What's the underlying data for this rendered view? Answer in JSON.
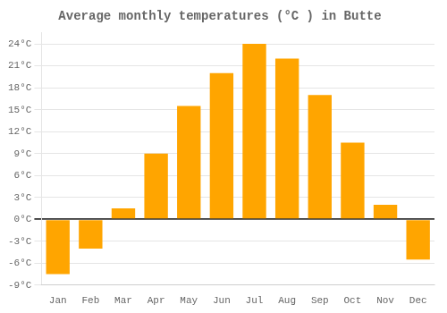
{
  "chart_data": {
    "type": "bar",
    "title": "Average monthly temperatures (°C ) in Butte",
    "categories": [
      "Jan",
      "Feb",
      "Mar",
      "Apr",
      "May",
      "Jun",
      "Jul",
      "Aug",
      "Sep",
      "Oct",
      "Nov",
      "Dec"
    ],
    "values": [
      -7.5,
      -4.0,
      1.5,
      9.0,
      15.5,
      20.0,
      24.0,
      22.0,
      17.0,
      10.5,
      2.0,
      -5.5
    ],
    "color": "#FFA500",
    "ylim": [
      -9,
      25.5
    ],
    "yticks": [
      {
        "value": -9,
        "label": "-9°C"
      },
      {
        "value": -6,
        "label": "-6°C"
      },
      {
        "value": -3,
        "label": "-3°C"
      },
      {
        "value": 0,
        "label": "0°C"
      },
      {
        "value": 3,
        "label": "3°C"
      },
      {
        "value": 6,
        "label": "6°C"
      },
      {
        "value": 9,
        "label": "9°C"
      },
      {
        "value": 12,
        "label": "12°C"
      },
      {
        "value": 15,
        "label": "15°C"
      },
      {
        "value": 18,
        "label": "18°C"
      },
      {
        "value": 21,
        "label": "21°C"
      },
      {
        "value": 24,
        "label": "24°C"
      }
    ],
    "grid": true
  }
}
